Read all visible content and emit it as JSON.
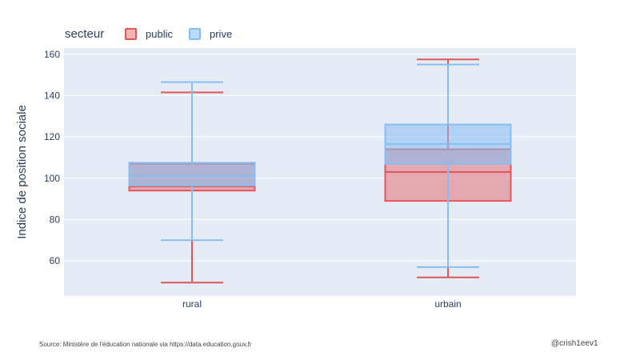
{
  "legend": {
    "title": "secteur",
    "items": [
      {
        "label": "public",
        "color": "#e0565b"
      },
      {
        "label": "prive",
        "color": "#86bef2"
      }
    ]
  },
  "footer": {
    "source": "Source: Ministère de l'éducation nationale via https://data.education.gouv.fr",
    "credit": "@crish1eev1"
  },
  "chart_data": {
    "type": "box",
    "categories": [
      "rural",
      "urbain"
    ],
    "ylabel": "Indice de position sociale",
    "xlabel": "",
    "ylim": [
      43,
      163
    ],
    "yticks": [
      60,
      80,
      100,
      120,
      140,
      160
    ],
    "grid": true,
    "legend_position": "top-left",
    "series": [
      {
        "name": "public",
        "color": "#e0565b",
        "fill": "rgba(224,86,91,0.45)",
        "boxes": [
          {
            "category": "rural",
            "min": 49.5,
            "q1": 94,
            "median": 96,
            "q3": 107,
            "max": 141.5
          },
          {
            "category": "urbain",
            "min": 52,
            "q1": 89,
            "median": 103,
            "q3": 114,
            "max": 157.5
          }
        ]
      },
      {
        "name": "prive",
        "color": "#86bef2",
        "fill": "rgba(134,190,242,0.55)",
        "boxes": [
          {
            "category": "rural",
            "min": 70,
            "q1": 96.5,
            "median": 101,
            "q3": 107.5,
            "max": 146.5
          },
          {
            "category": "urbain",
            "min": 57,
            "q1": 107,
            "median": 116.5,
            "q3": 126,
            "max": 155
          }
        ]
      }
    ]
  }
}
